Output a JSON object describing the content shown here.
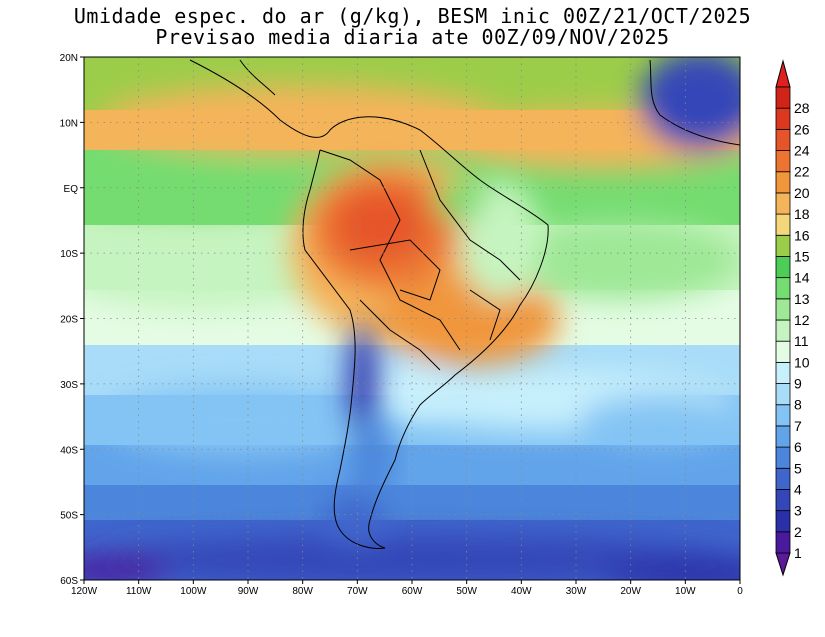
{
  "title": {
    "line1": "Umidade espec. do ar (g/kg), BESM inic 00Z/21/OCT/2025",
    "line2": "Previsao media diaria ate 00Z/09/NOV/2025"
  },
  "map": {
    "lon_range": [
      -120,
      0
    ],
    "lat_range": [
      -60,
      20
    ],
    "x_ticks": [
      "120W",
      "110W",
      "100W",
      "90W",
      "80W",
      "70W",
      "60W",
      "50W",
      "40W",
      "30W",
      "20W",
      "10W",
      "0"
    ],
    "y_ticks": [
      "20N",
      "10N",
      "EQ",
      "10S",
      "20S",
      "30S",
      "40S",
      "50S",
      "60S"
    ],
    "grid": "dotted"
  },
  "colorbar": {
    "levels": [
      "1",
      "2",
      "3",
      "4",
      "5",
      "6",
      "7",
      "8",
      "9",
      "10",
      "11",
      "12",
      "13",
      "14",
      "15",
      "16",
      "18",
      "20",
      "22",
      "24",
      "26",
      "28"
    ],
    "colors": [
      "#4a1a9e",
      "#2b2fa8",
      "#3546b8",
      "#3f66cc",
      "#4c86dc",
      "#62a4ea",
      "#84c4f4",
      "#a8dcf8",
      "#c8f0fc",
      "#e4fce4",
      "#c6f4c0",
      "#9ee896",
      "#74dc70",
      "#4ccd55",
      "#9ccd4a",
      "#f4d77a",
      "#f4b45a",
      "#f0963c",
      "#ec7430",
      "#e6542a",
      "#dc3820",
      "#d02418"
    ],
    "under_color": "#5a1a9a",
    "over_color": "#e02020"
  },
  "contour_levels_note": ""
}
